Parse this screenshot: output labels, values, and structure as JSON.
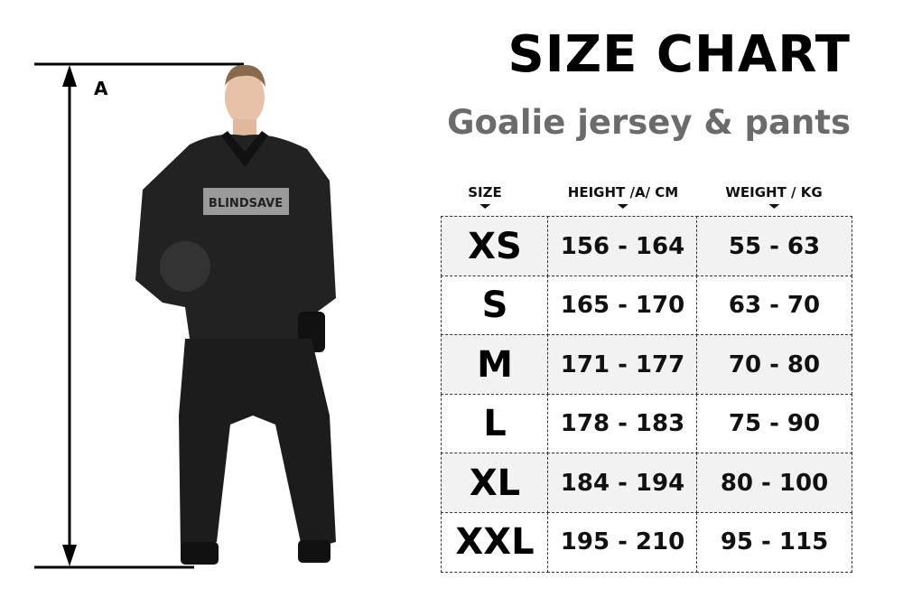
{
  "title": "SIZE CHART",
  "subtitle": "Goalie jersey & pants",
  "measure_label": "A",
  "jersey_logo": "BLINDSAVE",
  "table": {
    "headers": [
      "SIZE",
      "HEIGHT /A/ CM",
      "WEIGHT / KG"
    ],
    "rows": [
      {
        "size": "XS",
        "height": "156 - 164",
        "weight": "55 - 63"
      },
      {
        "size": "S",
        "height": "165 - 170",
        "weight": "63 - 70"
      },
      {
        "size": "M",
        "height": "171 - 177",
        "weight": "70 - 80"
      },
      {
        "size": "L",
        "height": "178 - 183",
        "weight": "75 - 90"
      },
      {
        "size": "XL",
        "height": "184 - 194",
        "weight": "80 - 100"
      },
      {
        "size": "XXL",
        "height": "195 - 210",
        "weight": "95 - 115"
      }
    ]
  }
}
